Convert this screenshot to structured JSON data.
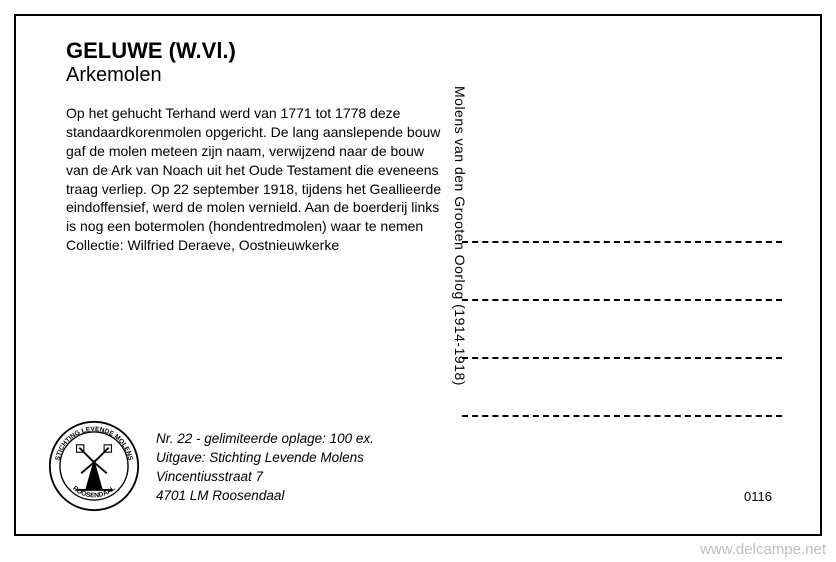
{
  "card": {
    "title": "GELUWE (W.Vl.)",
    "subtitle": "Arkemolen",
    "body": "Op het gehucht Terhand werd van 1771 tot 1778 deze standaardkorenmolen opgericht. De lang aanslepende bouw gaf de molen meteen zijn naam, verwijzend naar de bouw van de Ark van Noach uit het Oude Testament die eveneens traag verliep. Op 22 september 1918, tijdens het Geallieerde eindoffensief, werd de molen vernield. Aan de boerderij links is nog een botermolen (hondentredmolen) waar te nemen\nCollectie: Wilfried Deraeve, Oostnieuwkerke",
    "series_vertical": "Molens van den Grooten Oorlog  (1914-1918)",
    "publisher_line1": "Nr. 22 - gelimiteerde oplage: 100 ex.",
    "publisher_line2": "Uitgave: Stichting Levende Molens",
    "publisher_line3": "Vincentiusstraat 7",
    "publisher_line4": "4701 LM  Roosendaal",
    "serial": "0116",
    "logo": {
      "top_text": "STICHTING LEVENDE MOLENS",
      "bottom_text": "ROOSENDAAL"
    }
  },
  "watermark": "www.delcampe.net",
  "colors": {
    "text": "#000000",
    "background": "#ffffff",
    "watermark": "#bfbfbf"
  }
}
